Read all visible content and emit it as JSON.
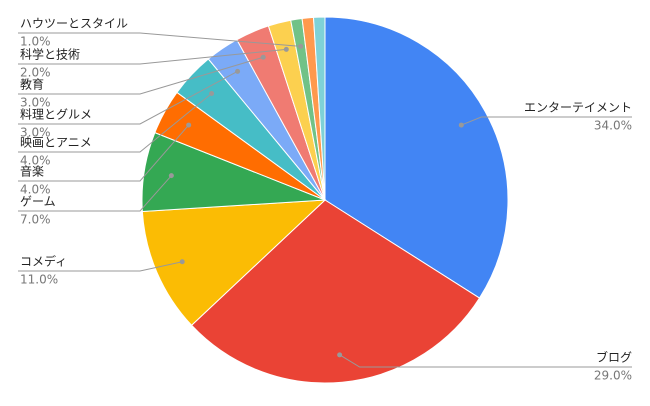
{
  "chart_data": {
    "type": "pie",
    "categories": [
      "エンターテイメント",
      "ブログ",
      "コメディ",
      "ゲーム",
      "音楽",
      "映画とアニメ",
      "料理とグルメ",
      "教育",
      "科学と技術",
      "ハウツーとスタイル",
      null,
      null
    ],
    "values": [
      34,
      29,
      11,
      7,
      4,
      4,
      3,
      3,
      2,
      1,
      1,
      1
    ],
    "value_labels": [
      "34.0%",
      "29.0%",
      "11.0%",
      "7.0%",
      "4.0%",
      "4.0%",
      "3.0%",
      "3.0%",
      "2.0%",
      "1.0%",
      null,
      null
    ],
    "colors": [
      "#4285f4",
      "#ea4335",
      "#fbbc04",
      "#34a853",
      "#ff6d01",
      "#46bdc6",
      "#7baaf7",
      "#f07b72",
      "#fcd04f",
      "#71c287",
      "#ff994d",
      "#7ed1d7"
    ]
  }
}
